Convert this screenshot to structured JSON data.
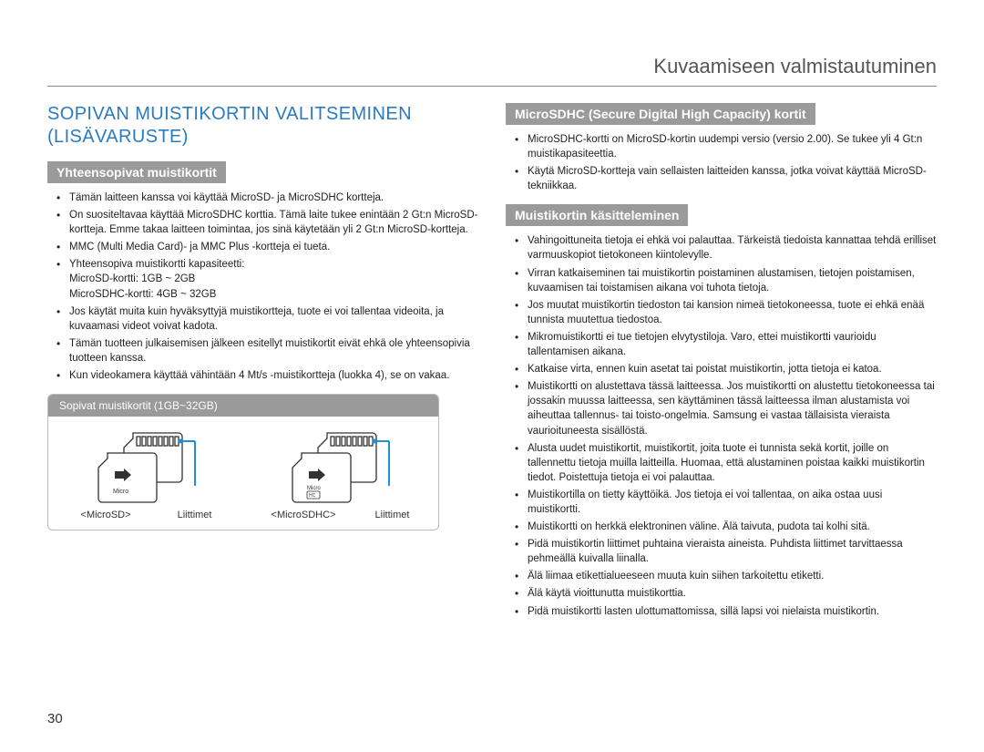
{
  "page_number": "30",
  "header": "Kuvaamiseen valmistautuminen",
  "left": {
    "heading": "SOPIVAN MUISTIKORTIN VALITSEMINEN (LISÄVARUSTE)",
    "section1_title": "Yhteensopivat muistikortit",
    "section1_bullets": [
      "Tämän laitteen kanssa voi käyttää MicroSD- ja MicroSDHC kortteja.",
      "On suositeltavaa käyttää MicroSDHC korttia. Tämä laite tukee enintään 2 Gt:n MicroSD-kortteja. Emme takaa laitteen toimintaa, jos sinä käytetään yli 2 Gt:n MicroSD-kortteja.",
      "MMC (Multi Media Card)- ja MMC Plus -kortteja ei tueta.",
      "Yhteensopiva muistikortti kapasiteetti:\nMicroSD-kortti: 1GB ~ 2GB\nMicroSDHC-kortti: 4GB ~ 32GB",
      "Jos käytät muita kuin hyväksyttyjä muistikortteja, tuote ei voi tallentaa videoita, ja kuvaamasi videot voivat kadota.",
      "Tämän tuotteen julkaisemisen jälkeen esitellyt muistikortit eivät ehkä ole yhteensopivia tuotteen kanssa.",
      "Kun videokamera käyttää vähintään 4 Mt/s -muistikortteja (luokka 4), se on vakaa."
    ],
    "cardbox_title": "Sopivat muistikortit (1GB~32GB)",
    "card1_label": "<MicroSD>",
    "card2_label": "<MicroSDHC>",
    "contacts_label": "Liittimet"
  },
  "right": {
    "section1_title": "MicroSDHC (Secure Digital High Capacity)  kortit",
    "section1_bullets": [
      "MicroSDHC-kortti on MicroSD-kortin uudempi versio (versio 2.00). Se tukee yli 4 Gt:n muistikapasiteettia.",
      "Käytä MicroSD-kortteja vain sellaisten laitteiden kanssa, jotka voivat käyttää MicroSD-tekniikkaa."
    ],
    "section2_title": "Muistikortin käsitteleminen",
    "section2_bullets": [
      "Vahingoittuneita tietoja ei ehkä voi palauttaa. Tärkeistä tiedoista kannattaa tehdä erilliset varmuuskopiot tietokoneen kiintolevylle.",
      "Virran katkaiseminen tai muistikortin poistaminen alustamisen, tietojen poistamisen, kuvaamisen tai toistamisen aikana voi tuhota tietoja.",
      "Jos muutat muistikortin tiedoston tai kansion nimeä tietokoneessa, tuote ei ehkä enää tunnista muutettua tiedostoa.",
      "Mikromuistikortti ei tue tietojen elvytystiloja. Varo, ettei muistikortti vaurioidu tallentamisen aikana.",
      "Katkaise virta, ennen kuin asetat tai poistat muistikortin, jotta tietoja ei katoa.",
      "Muistikortti on alustettava tässä laitteessa. Jos muistikortti on alustettu tietokoneessa tai jossakin muussa laitteessa, sen käyttäminen tässä laitteessa ilman alustamista voi aiheuttaa tallennus- tai toisto-ongelmia. Samsung ei vastaa tällaisista vieraista vaurioituneesta sisällöstä.",
      "Alusta uudet muistikortit, muistikortit, joita tuote ei tunnista sekä kortit, joille on tallennettu tietoja muilla laitteilla. Huomaa, että alustaminen poistaa kaikki muistikortin tiedot. Poistettuja tietoja ei voi palauttaa.",
      "Muistikortilla on tietty käyttöikä. Jos tietoja ei voi tallentaa, on aika ostaa uusi muistikortti.",
      "Muistikortti on herkkä elektroninen väline. Älä taivuta, pudota tai kolhi sitä.",
      "Pidä muistikortin liittimet puhtaina vieraista aineista. Puhdista liittimet tarvittaessa pehmeällä kuivalla liinalla.",
      "Älä liimaa etikettialueeseen muuta kuin siihen tarkoitettu etiketti.",
      "Älä käytä vioittunutta muistikorttia.",
      "Pidä muistikortti lasten ulottumattomissa, sillä lapsi voi nielaista muistikortin."
    ]
  },
  "colors": {
    "accent_blue": "#2a7bbf",
    "callout_blue": "#1f8fd6",
    "sub_bg": "#9a9a9a",
    "border": "#bbbbbb",
    "text": "#222222"
  }
}
